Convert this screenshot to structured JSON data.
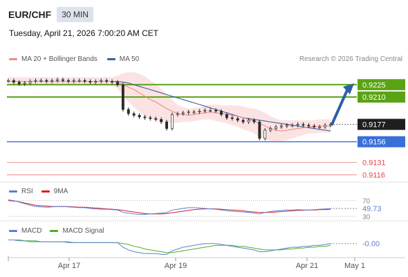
{
  "header": {
    "symbol": "EUR/CHF",
    "timeframe": "30 MIN",
    "datetime": "Tuesday, April 21, 2026 7:00:20 AM CET"
  },
  "credit": "Research © 2026 Trading Central",
  "colors": {
    "ma20": "#f08a8a",
    "bollinger_fill": "#fbdede",
    "ma50": "#3a5f9e",
    "candle": "#2a2a2a",
    "resistance": "#5aa314",
    "pivot": "#3a6fd8",
    "support": "#e64545",
    "arrow": "#2d5fa8",
    "rsi": "#5b7fd6",
    "rsi_ma": "#d42020",
    "macd": "#5b7fd6",
    "macd_signal": "#4caf20"
  },
  "chart_data": [
    {
      "type": "candlestick",
      "legend": [
        "MA 20 + Bollinger Bands",
        "MA 50"
      ],
      "legend_placement": "top-left",
      "ylim": [
        0.9108,
        0.9247
      ],
      "x_ticks": [
        "Apr 17",
        "Apr 19",
        "Apr 21",
        "May 1"
      ],
      "levels": [
        {
          "value": 0.9225,
          "label": "0.9225",
          "kind": "resistance"
        },
        {
          "value": 0.921,
          "label": "0.9210",
          "kind": "resistance"
        },
        {
          "value": 0.9156,
          "label": "0.9156",
          "kind": "pivot"
        },
        {
          "value": 0.9131,
          "label": "0.9131",
          "kind": "support"
        },
        {
          "value": 0.9116,
          "label": "0.9116",
          "kind": "support"
        }
      ],
      "last_price": {
        "value": 0.9177,
        "label": "0.9177"
      },
      "close_series": [
        0.923,
        0.9228,
        0.9226,
        0.9227,
        0.9229,
        0.923,
        0.923,
        0.9229,
        0.923,
        0.9231,
        0.923,
        0.9229,
        0.923,
        0.923,
        0.9229,
        0.9228,
        0.9229,
        0.923,
        0.9229,
        0.9228,
        0.9225,
        0.9195,
        0.919,
        0.9188,
        0.9186,
        0.9185,
        0.9184,
        0.9183,
        0.918,
        0.9172,
        0.9189,
        0.919,
        0.9191,
        0.9192,
        0.9192,
        0.9193,
        0.9194,
        0.9194,
        0.9193,
        0.9189,
        0.9185,
        0.9184,
        0.9182,
        0.918,
        0.9182,
        0.918,
        0.916,
        0.917,
        0.9172,
        0.9174,
        0.9175,
        0.9176,
        0.9176,
        0.9177,
        0.9176,
        0.9175,
        0.9174,
        0.9174,
        0.9176,
        0.9177
      ],
      "ma20_series": [
        0.9229,
        0.9229,
        0.9229,
        0.9229,
        0.9229,
        0.9229,
        0.9229,
        0.9229,
        0.9229,
        0.9229,
        0.9229,
        0.9229,
        0.9229,
        0.9229,
        0.9229,
        0.9229,
        0.9229,
        0.9229,
        0.9229,
        0.9229,
        0.9228,
        0.9225,
        0.9222,
        0.9219,
        0.9215,
        0.9211,
        0.9207,
        0.9204,
        0.92,
        0.9196,
        0.9193,
        0.919,
        0.9189,
        0.9188,
        0.9189,
        0.919,
        0.9191,
        0.9192,
        0.9191,
        0.919,
        0.9189,
        0.9188,
        0.9187,
        0.9185,
        0.9183,
        0.9181,
        0.9178,
        0.9175,
        0.9172,
        0.917,
        0.9169,
        0.917,
        0.9171,
        0.9172,
        0.9173,
        0.9174,
        0.9174,
        0.9175,
        0.9175,
        0.9175
      ],
      "ma50_series": [
        0.9229,
        0.9229,
        0.9229,
        0.9229,
        0.9229,
        0.9229,
        0.9229,
        0.9229,
        0.9229,
        0.9229,
        0.9229,
        0.9229,
        0.9229,
        0.9229,
        0.9229,
        0.9229,
        0.9229,
        0.9229,
        0.9229,
        0.9229,
        0.9229,
        0.9228,
        0.9227,
        0.9225,
        0.9223,
        0.9221,
        0.9219,
        0.9217,
        0.9215,
        0.9213,
        0.9211,
        0.9209,
        0.9207,
        0.9205,
        0.9203,
        0.9201,
        0.9199,
        0.9197,
        0.9195,
        0.9193,
        0.9191,
        0.9189,
        0.9187,
        0.9185,
        0.9184,
        0.9183,
        0.9182,
        0.9181,
        0.918,
        0.9179,
        0.9178,
        0.9177,
        0.9176,
        0.9175,
        0.9174,
        0.9173,
        0.9172,
        0.9171,
        0.917,
        0.9169
      ],
      "bollinger_width": [
        0.0005,
        0.0005,
        0.0005,
        0.0005,
        0.0005,
        0.0005,
        0.0005,
        0.0005,
        0.0005,
        0.0005,
        0.0005,
        0.0005,
        0.0005,
        0.0005,
        0.0005,
        0.0005,
        0.0005,
        0.0005,
        0.0005,
        0.0005,
        0.0008,
        0.0014,
        0.0018,
        0.0021,
        0.0023,
        0.0024,
        0.0023,
        0.0022,
        0.002,
        0.0017,
        0.0014,
        0.0011,
        0.0009,
        0.0008,
        0.0008,
        0.0008,
        0.0008,
        0.0009,
        0.001,
        0.001,
        0.0011,
        0.0012,
        0.0013,
        0.0014,
        0.0014,
        0.0015,
        0.0016,
        0.0016,
        0.0015,
        0.0014,
        0.0013,
        0.0012,
        0.0011,
        0.001,
        0.0009,
        0.0008,
        0.0008,
        0.0008,
        0.0008,
        0.0008
      ],
      "forecast_target": 0.9225
    },
    {
      "type": "line",
      "legend": [
        "RSI",
        "9MA"
      ],
      "ylim": [
        20,
        80
      ],
      "y_ticks": [
        "70",
        "30"
      ],
      "last_value": "49.73",
      "rsi_series": [
        72,
        70,
        66,
        62,
        58,
        55,
        54,
        53,
        54,
        55,
        55,
        54,
        53,
        52,
        52,
        50,
        49,
        48,
        48,
        47,
        46,
        40,
        38,
        36,
        35,
        35,
        36,
        37,
        38,
        40,
        46,
        48,
        50,
        52,
        52,
        51,
        50,
        49,
        48,
        46,
        44,
        43,
        42,
        41,
        40,
        38,
        36,
        40,
        42,
        44,
        45,
        46,
        46,
        47,
        46,
        46,
        47,
        48,
        49,
        49.73
      ],
      "ma9_series": [
        70,
        69,
        67,
        64,
        61,
        58,
        57,
        56,
        55,
        55,
        55,
        55,
        54,
        53,
        53,
        52,
        51,
        50,
        49,
        48,
        47,
        45,
        43,
        41,
        39,
        37,
        36,
        36,
        36,
        37,
        39,
        41,
        43,
        45,
        47,
        48,
        49,
        49,
        49,
        48,
        47,
        46,
        45,
        44,
        42,
        41,
        40,
        40,
        40,
        41,
        42,
        43,
        44,
        45,
        45,
        46,
        46,
        47,
        47,
        48
      ]
    },
    {
      "type": "line",
      "legend": [
        "MACD",
        "MACD Signal"
      ],
      "ylim": [
        -0.0016,
        0.0007
      ],
      "last_value": "-0.00",
      "macd_series": [
        0.0002,
        0.0002,
        0.0001,
        0.0001,
        0.0,
        0.0,
        0.0,
        0.0,
        0.0,
        0.0,
        0.0,
        -0.0001,
        -0.0001,
        -0.0001,
        -0.0001,
        -0.0001,
        -0.0001,
        -0.0001,
        -0.0001,
        -0.0001,
        -0.0001,
        -0.0006,
        -0.0009,
        -0.0011,
        -0.0012,
        -0.0013,
        -0.0013,
        -0.0013,
        -0.0014,
        -0.0014,
        -0.001,
        -0.0008,
        -0.0006,
        -0.0005,
        -0.0004,
        -0.0003,
        -0.0002,
        -0.0002,
        -0.0002,
        -0.0003,
        -0.0004,
        -0.0005,
        -0.0006,
        -0.0007,
        -0.0008,
        -0.0009,
        -0.0011,
        -0.0011,
        -0.001,
        -0.0009,
        -0.0008,
        -0.0007,
        -0.0006,
        -0.0006,
        -0.0005,
        -0.0005,
        -0.0004,
        -0.0004,
        -0.0003,
        -0.0002
      ],
      "signal_series": [
        0.0002,
        0.0002,
        0.0002,
        0.0001,
        0.0001,
        0.0001,
        0.0,
        0.0,
        0.0,
        0.0,
        0.0,
        0.0,
        -0.0001,
        -0.0001,
        -0.0001,
        -0.0001,
        -0.0001,
        -0.0001,
        -0.0001,
        -0.0001,
        -0.0001,
        -0.0002,
        -0.0003,
        -0.0005,
        -0.0006,
        -0.0008,
        -0.0009,
        -0.001,
        -0.0011,
        -0.0012,
        -0.0012,
        -0.0011,
        -0.001,
        -0.0009,
        -0.0008,
        -0.0007,
        -0.0006,
        -0.0005,
        -0.0004,
        -0.0004,
        -0.0004,
        -0.0004,
        -0.0005,
        -0.0005,
        -0.0006,
        -0.0007,
        -0.0008,
        -0.0009,
        -0.0009,
        -0.0009,
        -0.0009,
        -0.0008,
        -0.0008,
        -0.0007,
        -0.0007,
        -0.0006,
        -0.0006,
        -0.0005,
        -0.0005,
        -0.0004
      ]
    }
  ]
}
